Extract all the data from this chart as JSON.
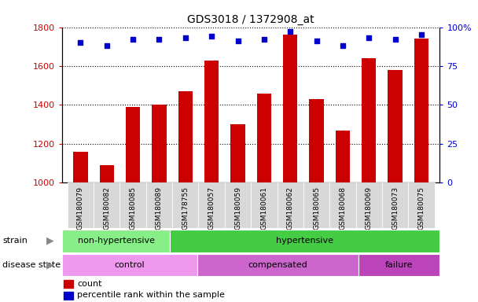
{
  "title": "GDS3018 / 1372908_at",
  "samples": [
    "GSM180079",
    "GSM180082",
    "GSM180085",
    "GSM180089",
    "GSM178755",
    "GSM180057",
    "GSM180059",
    "GSM180061",
    "GSM180062",
    "GSM180065",
    "GSM180068",
    "GSM180069",
    "GSM180073",
    "GSM180075"
  ],
  "counts": [
    1160,
    1090,
    1390,
    1400,
    1470,
    1630,
    1300,
    1460,
    1760,
    1430,
    1270,
    1640,
    1580,
    1740
  ],
  "percentile_ranks": [
    90,
    88,
    92,
    92,
    93,
    94,
    91,
    92,
    97,
    91,
    88,
    93,
    92,
    95
  ],
  "ylim_left": [
    1000,
    1800
  ],
  "ylim_right": [
    0,
    100
  ],
  "yticks_left": [
    1000,
    1200,
    1400,
    1600,
    1800
  ],
  "yticks_right": [
    0,
    25,
    50,
    75,
    100
  ],
  "bar_color": "#cc0000",
  "dot_color": "#0000cc",
  "sample_bg_color": "#d8d8d8",
  "strain_groups": [
    {
      "label": "non-hypertensive",
      "start": 0,
      "end": 4,
      "color": "#88ee88"
    },
    {
      "label": "hypertensive",
      "start": 4,
      "end": 14,
      "color": "#44cc44"
    }
  ],
  "disease_groups": [
    {
      "label": "control",
      "start": 0,
      "end": 5,
      "color": "#ee99ee"
    },
    {
      "label": "compensated",
      "start": 5,
      "end": 11,
      "color": "#cc66cc"
    },
    {
      "label": "failure",
      "start": 11,
      "end": 14,
      "color": "#bb44bb"
    }
  ],
  "legend_count_label": "count",
  "legend_pct_label": "percentile rank within the sample",
  "tick_color_left": "#cc0000",
  "tick_color_right": "#0000cc",
  "bar_width": 0.55,
  "strain_row_label": "strain",
  "disease_row_label": "disease state"
}
